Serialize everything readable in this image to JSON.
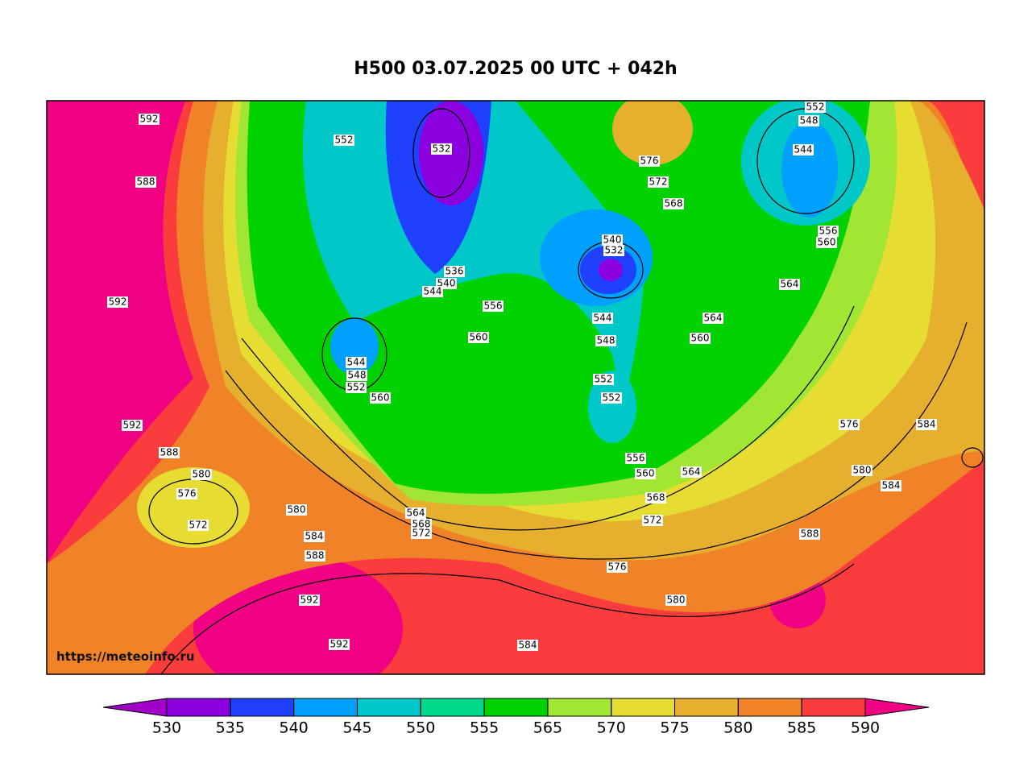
{
  "title": "H500  03.07.2025 00 UTC + 042h",
  "watermark": "https://meteoinfo.ru",
  "contour_labels": [
    "592",
    "552",
    "532",
    "588",
    "576",
    "572",
    "568",
    "552",
    "548",
    "544",
    "556",
    "560",
    "540",
    "532",
    "536",
    "540",
    "544",
    "556",
    "592",
    "564",
    "564",
    "560",
    "560",
    "544",
    "548",
    "544",
    "548",
    "552",
    "560",
    "552",
    "552",
    "592",
    "576",
    "584",
    "588",
    "556",
    "560",
    "564",
    "580",
    "580",
    "584",
    "576",
    "568",
    "580",
    "564",
    "568",
    "572",
    "572",
    "572",
    "588",
    "584",
    "588",
    "576",
    "580",
    "592",
    "592",
    "584"
  ],
  "colorbar": {
    "ticks": [
      530,
      535,
      540,
      545,
      550,
      555,
      565,
      570,
      575,
      580,
      585,
      590
    ],
    "colors": [
      "#8c00e0",
      "#2040ff",
      "#00a0ff",
      "#00c8c8",
      "#00d88c",
      "#00d200",
      "#a0e632",
      "#e6dc32",
      "#e6af2d",
      "#f08228",
      "#fa3c3c"
    ],
    "under_color": "#a000c8",
    "over_color": "#f00082"
  }
}
